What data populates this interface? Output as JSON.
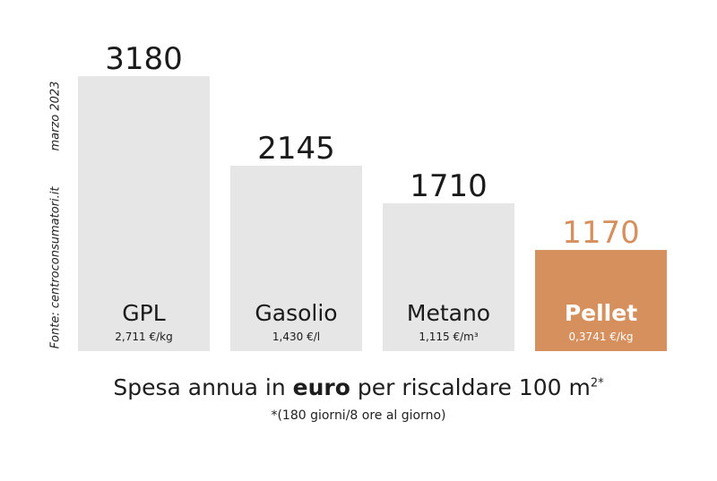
{
  "source": {
    "fonte": "Fonte: centroconsumatori.it",
    "date": "marzo 2023"
  },
  "caption": {
    "pre": "Spesa annua in ",
    "bold": "euro",
    "post": " per riscaldare 100 m",
    "sup": "2*"
  },
  "footnote": "*(180 giorni/8 ore al giorno)",
  "chart_data": {
    "type": "bar",
    "categories": [
      "GPL",
      "Gasolio",
      "Metano",
      "Pellet"
    ],
    "values": [
      3180,
      2145,
      1710,
      1170
    ],
    "value_labels": [
      "3180",
      "2145",
      "1710",
      "1170"
    ],
    "unit_prices": [
      "2,711 €/kg",
      "1,430 €/l",
      "1,115 €/m³",
      "0,3741 €/kg"
    ],
    "colors": [
      "#e6e6e6",
      "#e6e6e6",
      "#e6e6e6",
      "#d6905e"
    ],
    "highlight_index": 3,
    "highlight_text_color": "#d6905e",
    "ylim": [
      0,
      3180
    ],
    "grid": false
  }
}
